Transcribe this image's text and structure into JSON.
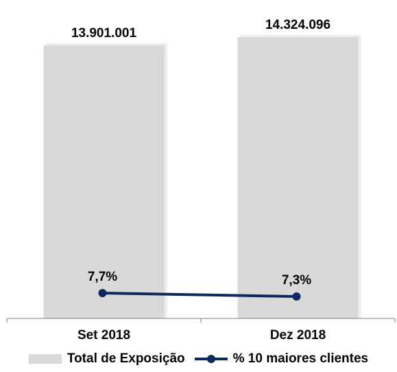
{
  "chart_data": {
    "type": "bar",
    "categories": [
      "Set 2018",
      "Dez 2018"
    ],
    "series": [
      {
        "name": "Total de Exposição",
        "type": "bar",
        "values": [
          13901001,
          14324096
        ],
        "value_labels": [
          "13.901.001",
          "14.324.096"
        ],
        "color": "#d9d9d9"
      },
      {
        "name": "% 10 maiores clientes",
        "type": "line",
        "values": [
          7.7,
          7.3
        ],
        "value_labels": [
          "7,7%",
          "7,3%"
        ],
        "color": "#0b2a5e"
      }
    ],
    "grid": false,
    "legend": "bottom"
  }
}
